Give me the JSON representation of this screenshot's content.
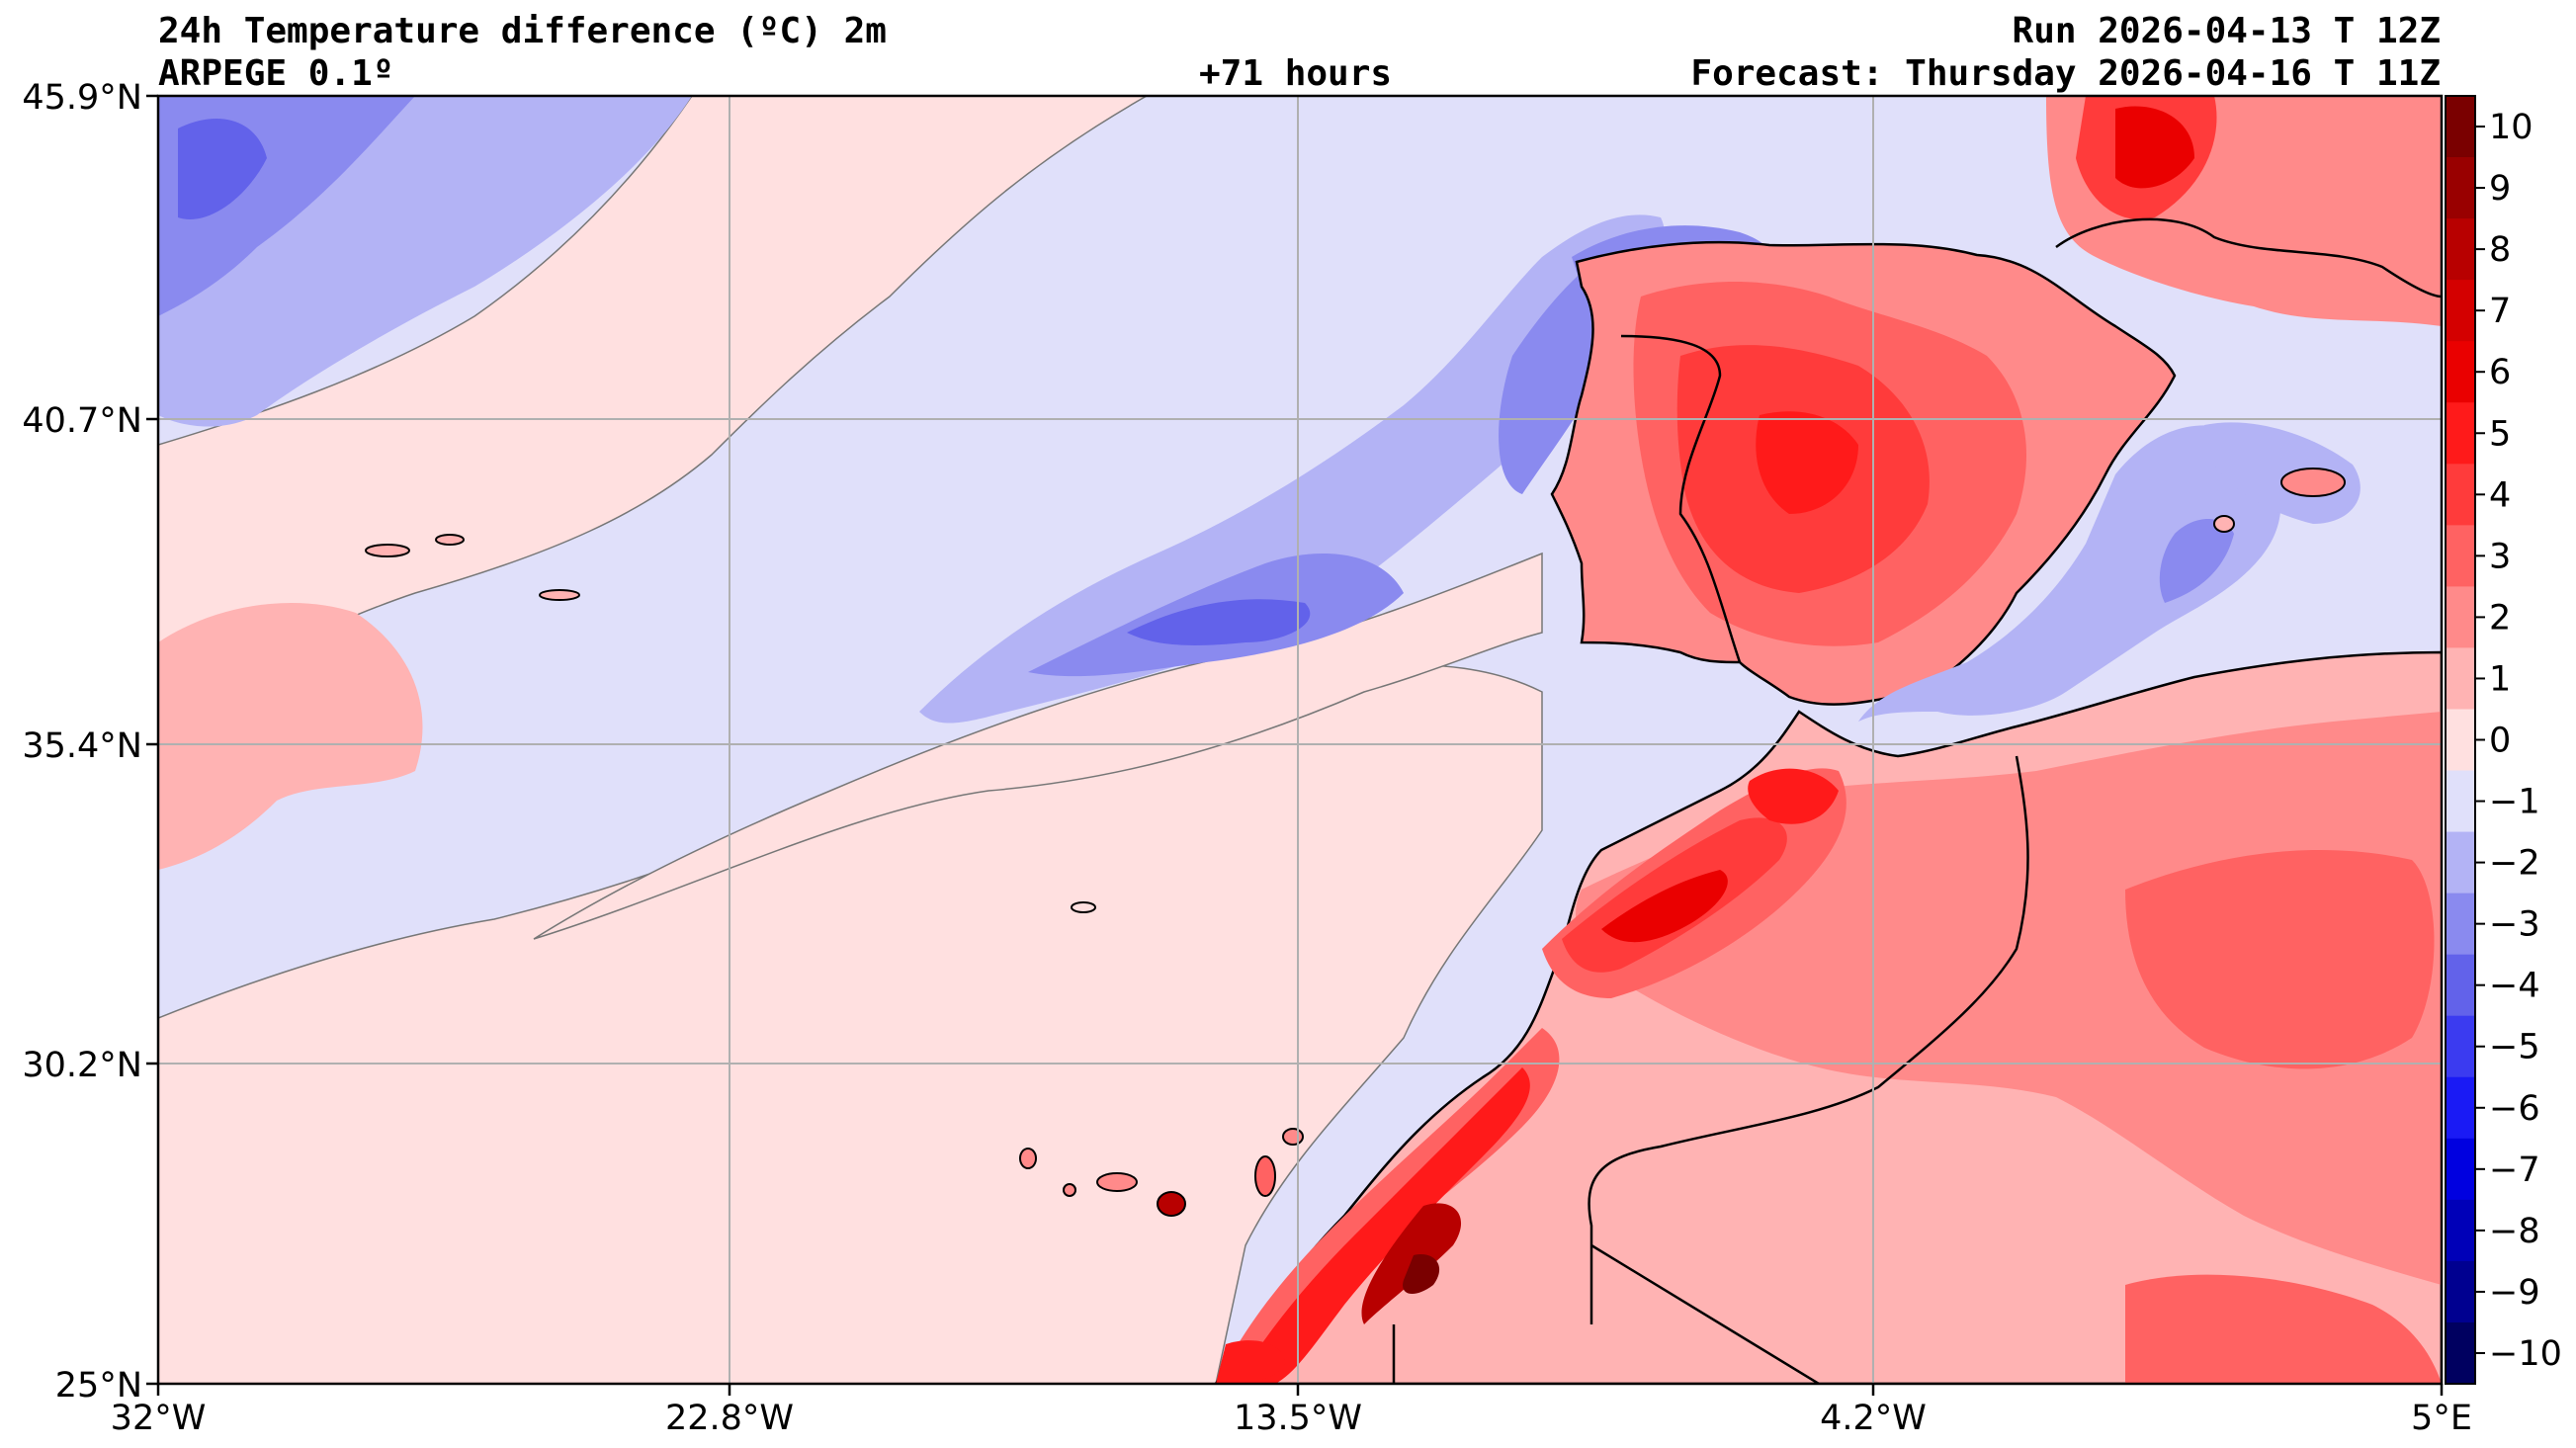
{
  "header": {
    "title": "24h Temperature difference (ºC) 2m",
    "model": "ARPEGE 0.1º",
    "lead_time": "+71 hours",
    "run": "Run 2026-04-13 T 12Z",
    "forecast": "Forecast: Thursday 2026-04-16 T 11Z"
  },
  "map": {
    "lon_range": [
      -32,
      5
    ],
    "lat_range": [
      25,
      45.9
    ],
    "lat_labels": [
      "45.9°N",
      "40.7°N",
      "35.4°N",
      "30.2°N",
      "25°N"
    ],
    "lon_labels": [
      "32°W",
      "22.8°W",
      "13.5°W",
      "4.2°W",
      "5°E"
    ]
  },
  "colorbar": {
    "levels": [
      10,
      9,
      8,
      7,
      6,
      5,
      4,
      3,
      2,
      1,
      0,
      -1,
      -2,
      -3,
      -4,
      -5,
      -6,
      -7,
      -8,
      -9,
      -10
    ],
    "labels": [
      "10",
      "9",
      "8",
      "7",
      "6",
      "5",
      "4",
      "3",
      "2",
      "1",
      "0",
      "−1",
      "−2",
      "−3",
      "−4",
      "−5",
      "−6",
      "−7",
      "−8",
      "−9",
      "−10"
    ],
    "colors": [
      "#7a0000",
      "#990000",
      "#b80000",
      "#d40000",
      "#ea0000",
      "#ff1a1a",
      "#ff3b3b",
      "#ff6262",
      "#ff8a8a",
      "#ffb3b3",
      "#ffe0e0",
      "#e0e0fa",
      "#b3b3f5",
      "#8a8aef",
      "#6262ea",
      "#3b3bf0",
      "#1a1af5",
      "#0000e0",
      "#0000b8",
      "#000090",
      "#000060"
    ]
  }
}
